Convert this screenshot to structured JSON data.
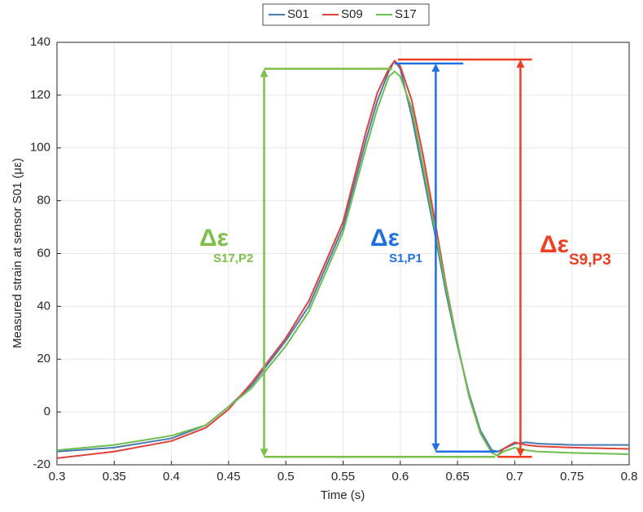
{
  "chart_data": {
    "type": "line",
    "x_label": "Time (s)",
    "y_label": "Measured strain at sensor S01 (με)",
    "x": [
      0.3,
      0.35,
      0.4,
      0.43,
      0.45,
      0.47,
      0.5,
      0.52,
      0.55,
      0.57,
      0.58,
      0.59,
      0.595,
      0.6,
      0.61,
      0.62,
      0.63,
      0.64,
      0.65,
      0.66,
      0.67,
      0.68,
      0.685,
      0.69,
      0.7,
      0.71,
      0.72,
      0.75,
      0.8
    ],
    "series": [
      {
        "name": "S01",
        "color": "#4a79ad",
        "values": [
          -15,
          -13.5,
          -10,
          -5,
          2,
          10,
          27,
          40,
          70,
          103,
          118,
          129,
          133,
          130,
          112,
          90,
          68,
          45,
          25,
          7,
          -7,
          -14.5,
          -15,
          -14,
          -12,
          -11.5,
          -12,
          -12.5,
          -12.5
        ]
      },
      {
        "name": "S09",
        "color": "#e0413a",
        "values": [
          -17.5,
          -15,
          -11,
          -6,
          1,
          11,
          28,
          42,
          72,
          106,
          121,
          130,
          133,
          131,
          118,
          97,
          73,
          48,
          26,
          6,
          -8,
          -15.5,
          -16.5,
          -14,
          -11.5,
          -12.5,
          -13,
          -13.5,
          -14
        ]
      },
      {
        "name": "S17",
        "color": "#6cbf4f",
        "values": [
          -14.5,
          -12.5,
          -9,
          -5,
          2,
          9,
          25,
          38,
          68,
          100,
          115,
          127,
          129,
          127,
          115,
          93,
          70,
          47,
          26,
          6,
          -8,
          -15.5,
          -16.5,
          -15,
          -13.5,
          -14.5,
          -15,
          -15.5,
          -16
        ]
      }
    ],
    "xlim": [
      0.3,
      0.8
    ],
    "xticks": [
      0.3,
      0.35,
      0.4,
      0.45,
      0.5,
      0.55,
      0.6,
      0.65,
      0.7,
      0.75,
      0.8
    ],
    "ylim": [
      -20,
      140
    ],
    "yticks": [
      -20,
      0,
      20,
      40,
      60,
      80,
      100,
      120,
      140
    ],
    "grid": true,
    "legend": "top",
    "annotations": [
      {
        "text": "Δε",
        "subscript": "S17,P2",
        "color": "#7cbf4a",
        "x": 0.481,
        "y_top": 130,
        "y_bottom": -17,
        "x_span_top": [
          0.481,
          0.593
        ],
        "x_span_bottom": [
          0.481,
          0.683
        ]
      },
      {
        "text": "Δε",
        "subscript": "S1,P1",
        "color": "#1f6fde",
        "x": 0.631,
        "y_top": 132,
        "y_bottom": -15,
        "x_span_top": [
          0.595,
          0.655
        ],
        "x_span_bottom": [
          0.631,
          0.685
        ]
      },
      {
        "text": "Δε",
        "subscript": "S9,P3",
        "color": "#ef3e22",
        "x": 0.705,
        "y_top": 133.5,
        "y_bottom": -17,
        "x_span_top": [
          0.598,
          0.715
        ],
        "x_span_bottom": [
          0.685,
          0.715
        ]
      }
    ]
  }
}
